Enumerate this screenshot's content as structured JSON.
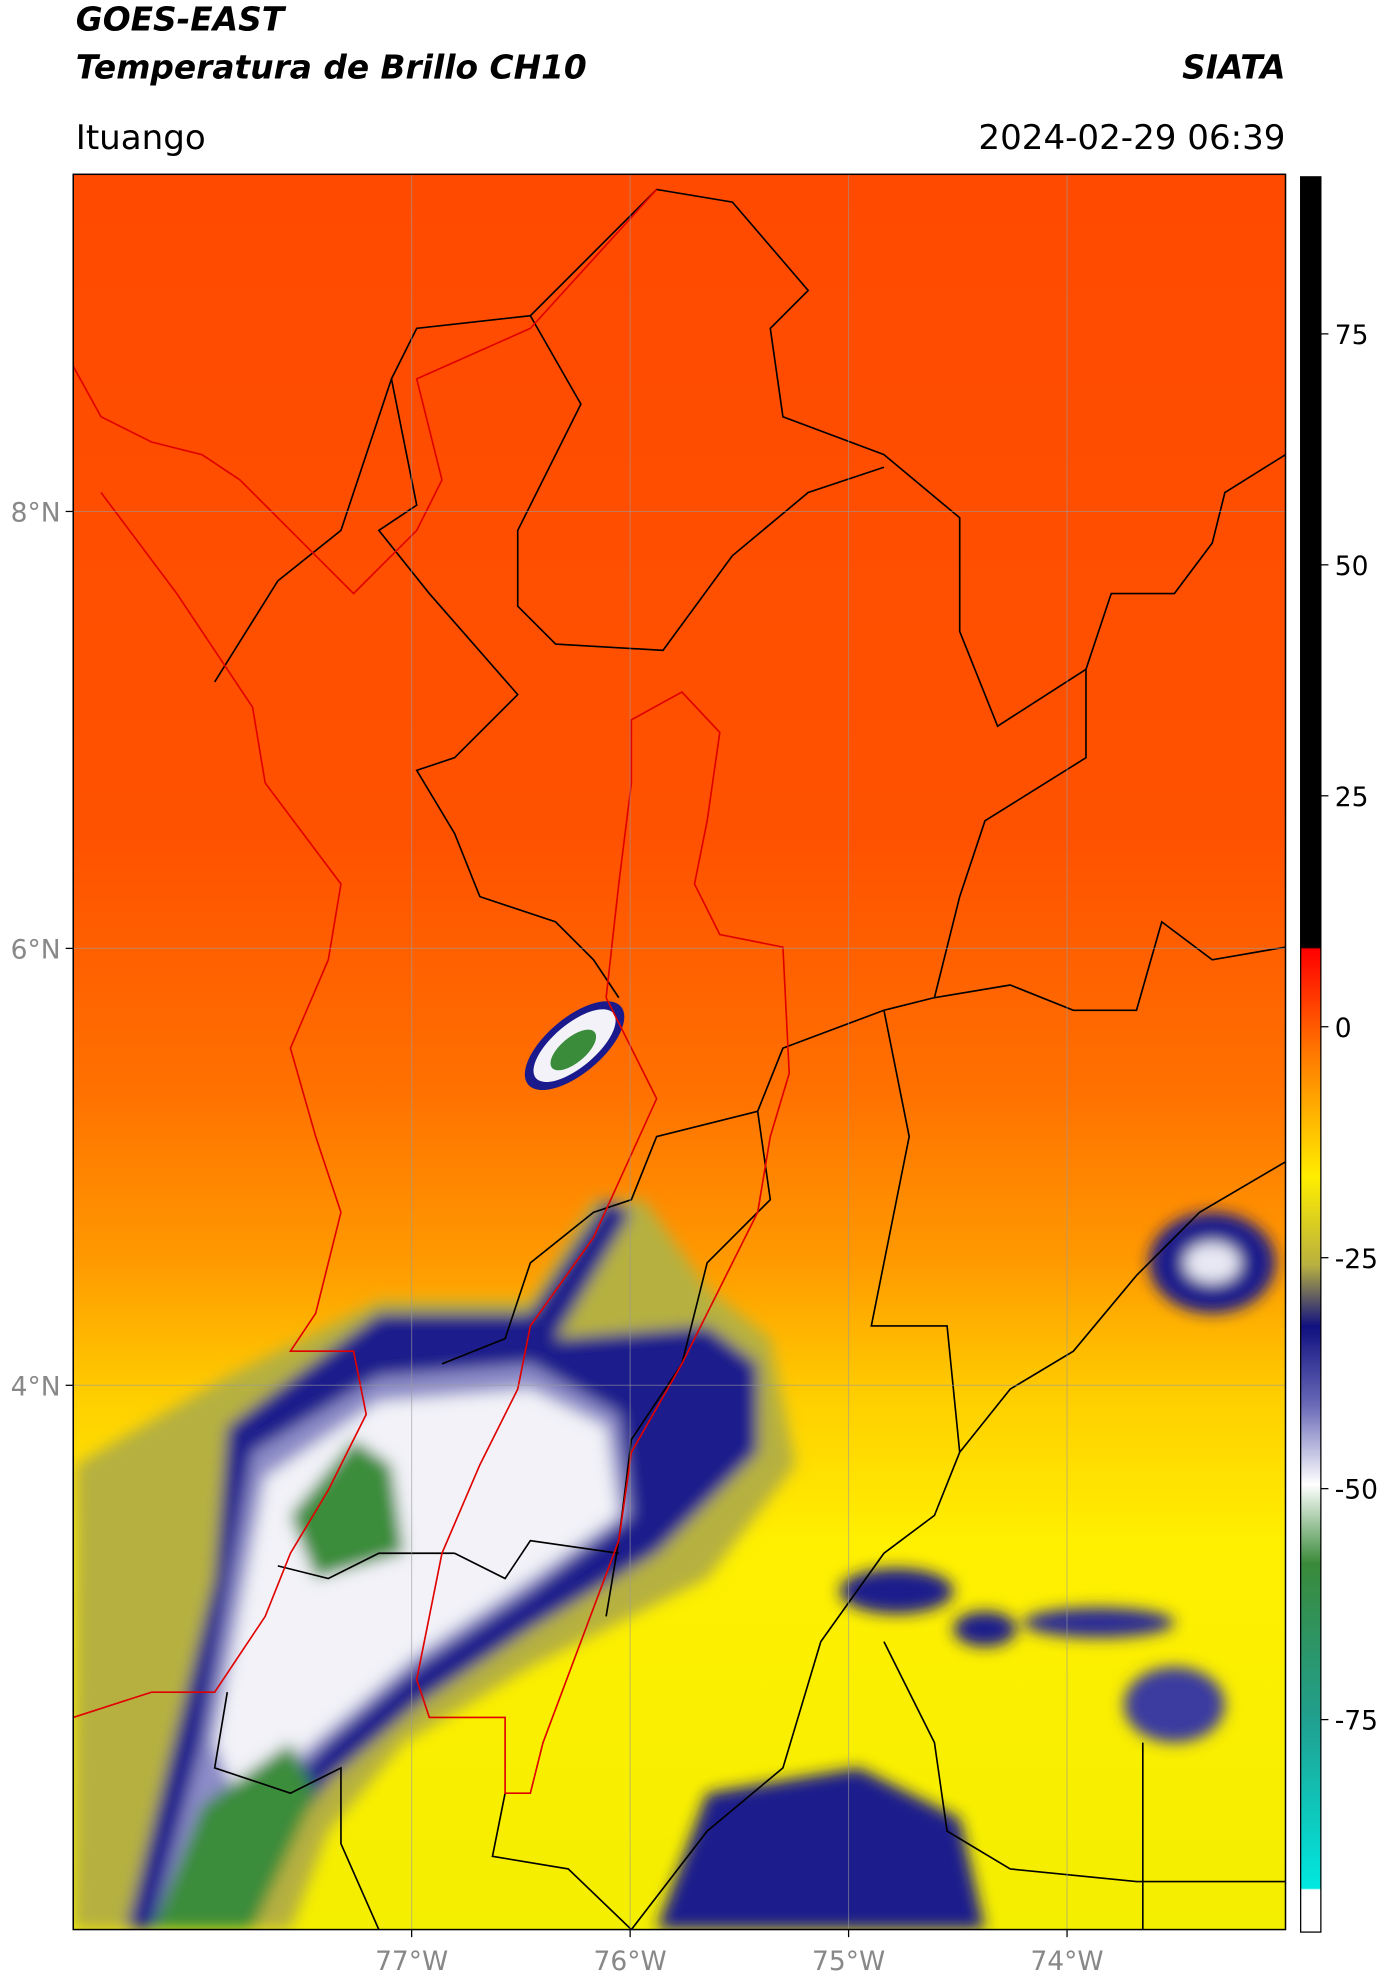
{
  "header": {
    "title_line1": "GOES-EAST",
    "title_line2": "Temperatura de Brillo CH10",
    "organization": "SIATA",
    "location": "Ituango",
    "datetime": "2024-02-29 06:39"
  },
  "map": {
    "lat_labels": [
      "8°N",
      "6°N",
      "4°N"
    ],
    "lon_labels": [
      "77°W",
      "76°W",
      "75°W",
      "74°W"
    ]
  },
  "colorbar": {
    "ylim": [
      -98,
      92
    ],
    "yticks": [
      75,
      50,
      25,
      0,
      -25,
      -50,
      -75
    ]
  }
}
